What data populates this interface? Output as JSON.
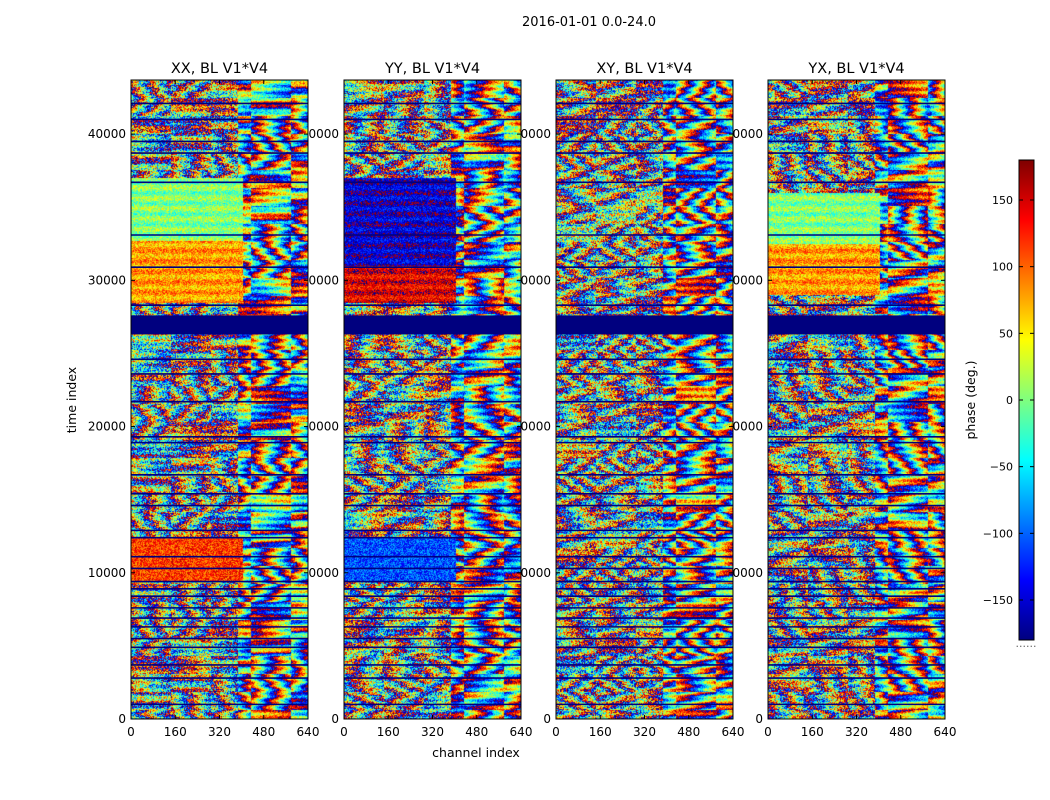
{
  "chart_data": {
    "type": "heatmap",
    "title": "2016-01-01 0.0-24.0",
    "xlabel": "channel index",
    "ylabel": "time index",
    "colorbar": {
      "label": "phase (deg.)",
      "range": [
        -180,
        180
      ],
      "ticks": [
        150,
        100,
        50,
        0,
        -50,
        -100,
        -150
      ],
      "tick_labels": [
        "150",
        "100",
        "50",
        "0",
        "−50",
        "−100",
        "−150"
      ],
      "footer": "......",
      "colormap": [
        "#00007f",
        "#0000ff",
        "#007fff",
        "#00ffff",
        "#7fff7f",
        "#ffff00",
        "#ff7f00",
        "#ff0000",
        "#7f0000"
      ]
    },
    "xlim": [
      0,
      640
    ],
    "ylim": [
      0,
      43700
    ],
    "xticks": [
      0,
      160,
      320,
      480,
      640
    ],
    "yticks": [
      0,
      10000,
      20000,
      30000,
      40000
    ],
    "ytick_labels_first": [
      "0",
      "10000",
      "20000",
      "30000",
      "40000"
    ],
    "ytick_labels_other": [
      "0",
      "0000",
      "0000",
      "0000",
      "0000"
    ],
    "flagged_rows": [
      [
        26300,
        27600
      ]
    ],
    "separator_rows": [
      1000,
      2800,
      3700,
      4900,
      5500,
      6300,
      6900,
      7600,
      8400,
      8900,
      9400,
      10300,
      11100,
      12400,
      12900,
      14600,
      15400,
      16700,
      18900,
      19300,
      21700,
      23600,
      24600,
      28300,
      30900,
      33100,
      36700,
      38700,
      39500,
      41000,
      42100
    ],
    "panels": [
      {
        "title": "XX, BL V1*V4",
        "smooth_band": [
          28500,
          37000
        ],
        "smooth_color": "#7fff7f",
        "smooth_color2": "#ffff00",
        "warm_band": [
          9500,
          12500
        ],
        "warm_color": "#ff7f00"
      },
      {
        "title": "YY, BL V1*V4",
        "smooth_band": [
          28500,
          37000
        ],
        "smooth_color": "#0000cf",
        "smooth_color2": "#ff2000",
        "warm_band": [
          9500,
          12500
        ],
        "warm_color": "#0040ff"
      },
      {
        "title": "XY, BL V1*V4",
        "smooth_band": null,
        "smooth_color": null,
        "smooth_color2": null,
        "warm_band": null,
        "warm_color": null
      },
      {
        "title": "YX, BL V1*V4",
        "smooth_band": [
          29000,
          36000
        ],
        "smooth_color": "#ff7f00",
        "smooth_color2": "#ffff00",
        "warm_band": null,
        "warm_color": null
      }
    ]
  }
}
